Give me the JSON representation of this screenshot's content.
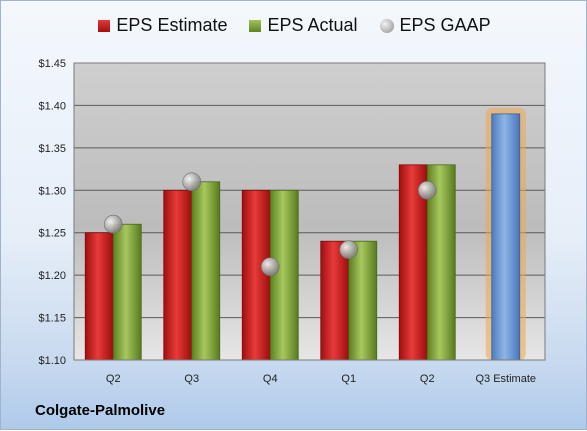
{
  "company": "Colgate-Palmolive",
  "legend": {
    "estimate": "EPS Estimate",
    "actual": "EPS Actual",
    "gaap": "EPS GAAP"
  },
  "colors": {
    "estimate": "#c81e1e",
    "actual": "#7fa33a",
    "gaap": "#9a9a9a",
    "forecast": "#6e9bd3",
    "forecast_glow": "#f2a54a"
  },
  "chart_data": {
    "type": "bar",
    "title": "",
    "xlabel": "",
    "ylabel": "",
    "categories": [
      "Q2",
      "Q3",
      "Q4",
      "Q1",
      "Q2",
      "Q3 Estimate"
    ],
    "series": [
      {
        "name": "EPS Estimate",
        "values": [
          1.25,
          1.3,
          1.3,
          1.24,
          1.33,
          1.39
        ]
      },
      {
        "name": "EPS Actual",
        "values": [
          1.26,
          1.31,
          1.3,
          1.24,
          1.33,
          null
        ]
      },
      {
        "name": "EPS GAAP",
        "values": [
          1.26,
          1.31,
          1.21,
          1.23,
          1.3,
          null
        ]
      }
    ],
    "ylim": [
      1.1,
      1.45
    ],
    "yticks": [
      "$1.10",
      "$1.15",
      "$1.20",
      "$1.25",
      "$1.30",
      "$1.35",
      "$1.40",
      "$1.45"
    ],
    "ytick_values": [
      1.1,
      1.15,
      1.2,
      1.25,
      1.3,
      1.35,
      1.4,
      1.45
    ],
    "grid": true,
    "legend_position": "top"
  }
}
